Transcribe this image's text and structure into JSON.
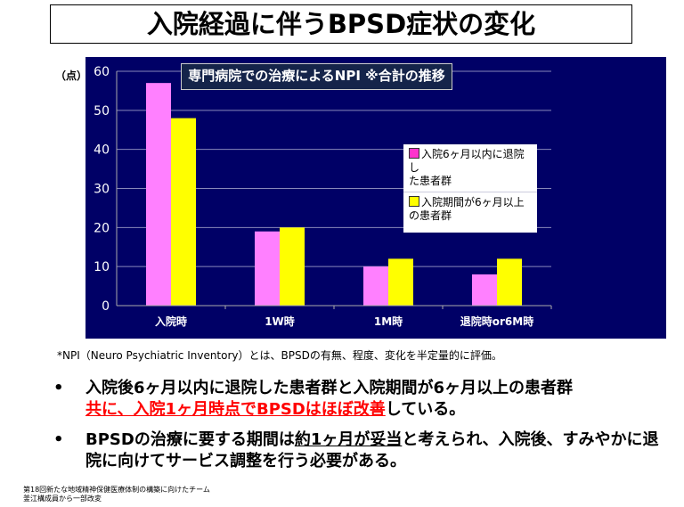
{
  "title": "入院経過に伴うBPSD症状の変化",
  "unit_label": "（点）",
  "chart_data": {
    "type": "bar",
    "title": "専門病院での治療によるNPI ※合計の推移",
    "categories": [
      "入院時",
      "1W時",
      "1M時",
      "退院時or6M時"
    ],
    "series": [
      {
        "name": "入院6ヶ月以内に退院した患者群",
        "color": "#ff80ff",
        "values": [
          57,
          19,
          10,
          8
        ]
      },
      {
        "name": "入院期間が6ヶ月以上の患者群",
        "color": "#ffff00",
        "values": [
          48,
          20,
          12,
          12
        ]
      }
    ],
    "yticks": [
      0,
      10,
      20,
      30,
      40,
      50,
      60
    ],
    "ylim": [
      0,
      60
    ],
    "ylabel": "（点）",
    "grid": true,
    "legend": "right",
    "background": "#000066"
  },
  "legend": {
    "item1_line1": "入院6ヶ月以内に退院し",
    "item1_line2": "た患者群",
    "item2_line1": "入院期間が6ヶ月以上",
    "item2_line2": "の患者群"
  },
  "note": "*NPI（Neuro Psychiatric Inventory）とは、BPSDの有無、程度、変化を半定量的に評価。",
  "bullets": {
    "b1_black": "入院後6ヶ月以内に退院した患者群と入院期間が6ヶ月以上の患者群",
    "b1_red": "共に、入院1ヶ月時点でBPSDはほぼ改善",
    "b1_end": "している。",
    "b2_a": "BPSDの治療に要する期間は",
    "b2_ul": "約1ヶ月が妥当",
    "b2_b": "と考えられ、入院後、すみやかに退院に向けてサービス調整を行う必要がある。",
    "dot": "•"
  },
  "footer": {
    "line1": "第18回新たな地域精神保健医療体制の構築に向けたチーム",
    "line2": "釜江構成員から一部改変"
  }
}
